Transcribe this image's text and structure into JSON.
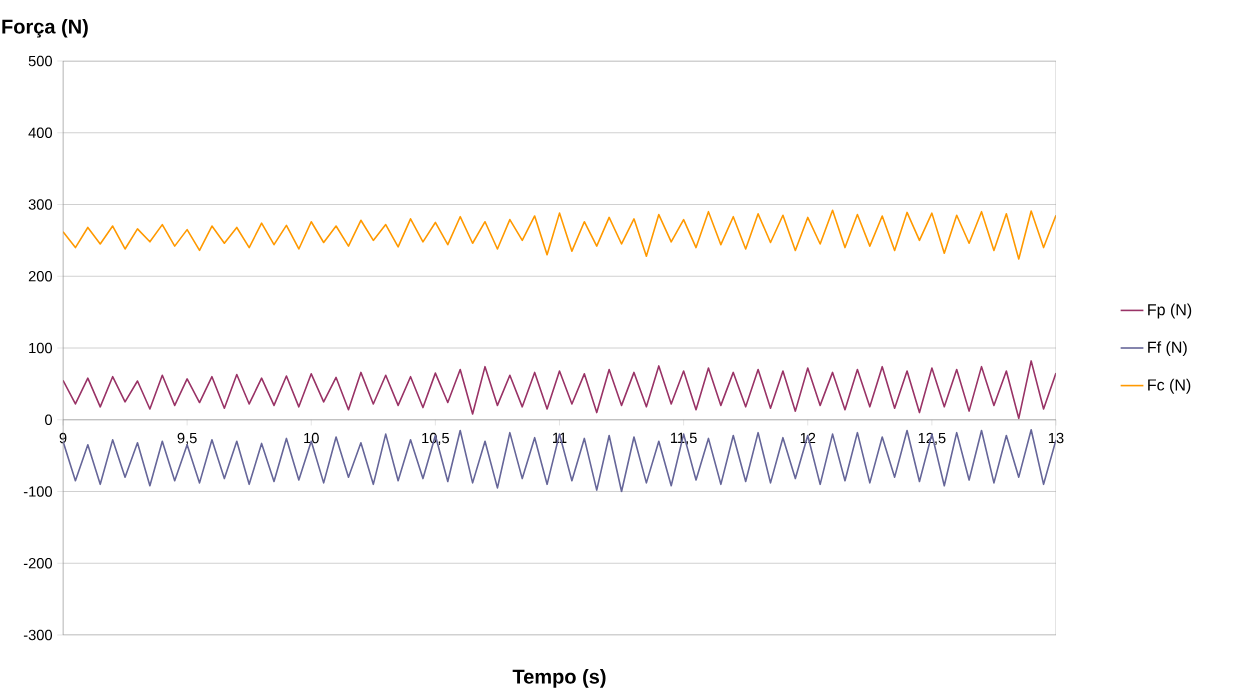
{
  "chart_data": {
    "type": "line",
    "xlabel": "Tempo  (s)",
    "ylabel": "Força (N)",
    "x": [
      9,
      9.05,
      9.1,
      9.15,
      9.2,
      9.25,
      9.3,
      9.35,
      9.4,
      9.45,
      9.5,
      9.55,
      9.6,
      9.65,
      9.7,
      9.75,
      9.8,
      9.85,
      9.9,
      9.95,
      10,
      10.05,
      10.1,
      10.15,
      10.2,
      10.25,
      10.3,
      10.35,
      10.4,
      10.45,
      10.5,
      10.55,
      10.6,
      10.65,
      10.7,
      10.75,
      10.8,
      10.85,
      10.9,
      10.95,
      11,
      11.05,
      11.1,
      11.15,
      11.2,
      11.25,
      11.3,
      11.35,
      11.4,
      11.45,
      11.5,
      11.55,
      11.6,
      11.65,
      11.7,
      11.75,
      11.8,
      11.85,
      11.9,
      11.95,
      12,
      12.05,
      12.1,
      12.15,
      12.2,
      12.25,
      12.3,
      12.35,
      12.4,
      12.45,
      12.5,
      12.55,
      12.6,
      12.65,
      12.7,
      12.75,
      12.8,
      12.85,
      12.9,
      12.95,
      13
    ],
    "series": [
      {
        "name": "Fp (N)",
        "color": "#993366",
        "values": [
          55,
          22,
          58,
          18,
          60,
          25,
          54,
          15,
          62,
          20,
          57,
          24,
          60,
          16,
          63,
          22,
          58,
          20,
          61,
          18,
          64,
          25,
          59,
          14,
          66,
          22,
          62,
          20,
          60,
          17,
          65,
          24,
          70,
          8,
          74,
          20,
          62,
          18,
          66,
          15,
          68,
          22,
          64,
          10,
          70,
          20,
          66,
          18,
          75,
          22,
          68,
          14,
          72,
          20,
          66,
          18,
          70,
          16,
          68,
          12,
          72,
          20,
          66,
          14,
          70,
          18,
          74,
          16,
          68,
          10,
          72,
          18,
          70,
          12,
          74,
          20,
          68,
          2,
          82,
          15,
          65
        ]
      },
      {
        "name": "Ff (N)",
        "color": "#666699",
        "values": [
          -30,
          -85,
          -35,
          -90,
          -28,
          -80,
          -32,
          -92,
          -30,
          -85,
          -35,
          -88,
          -28,
          -82,
          -30,
          -90,
          -33,
          -86,
          -26,
          -84,
          -30,
          -88,
          -24,
          -80,
          -32,
          -90,
          -20,
          -85,
          -28,
          -82,
          -22,
          -86,
          -15,
          -88,
          -30,
          -95,
          -18,
          -82,
          -25,
          -90,
          -20,
          -85,
          -26,
          -98,
          -22,
          -100,
          -24,
          -88,
          -30,
          -92,
          -20,
          -84,
          -26,
          -90,
          -22,
          -86,
          -18,
          -88,
          -25,
          -82,
          -22,
          -90,
          -20,
          -85,
          -18,
          -88,
          -24,
          -80,
          -15,
          -86,
          -20,
          -92,
          -18,
          -84,
          -15,
          -88,
          -22,
          -80,
          -14,
          -90,
          -28
        ]
      },
      {
        "name": "Fc (N)",
        "color": "#ff9900",
        "values": [
          262,
          240,
          268,
          245,
          270,
          238,
          266,
          248,
          272,
          242,
          265,
          236,
          270,
          246,
          268,
          240,
          274,
          244,
          271,
          238,
          276,
          247,
          270,
          242,
          278,
          250,
          272,
          241,
          280,
          248,
          275,
          244,
          283,
          246,
          276,
          238,
          279,
          250,
          284,
          230,
          288,
          235,
          276,
          242,
          282,
          245,
          280,
          228,
          286,
          248,
          279,
          240,
          290,
          244,
          283,
          238,
          287,
          247,
          285,
          236,
          282,
          245,
          292,
          240,
          286,
          242,
          284,
          236,
          289,
          250,
          288,
          232,
          285,
          246,
          290,
          236,
          287,
          224,
          291,
          240,
          285
        ]
      }
    ],
    "xlim": [
      9,
      13
    ],
    "ylim": [
      -300,
      500
    ],
    "xticks": [
      9,
      {
        "value": 9.5,
        "label": "9,5"
      },
      10,
      {
        "value": 10.5,
        "label": "10,5"
      },
      11,
      {
        "value": 11.5,
        "label": "11,5"
      },
      12,
      {
        "value": 12.5,
        "label": "12,5"
      },
      13
    ],
    "yticks": [
      -300,
      -200,
      -100,
      0,
      100,
      200,
      300,
      400,
      500
    ],
    "grid": "y",
    "legend": "right"
  }
}
